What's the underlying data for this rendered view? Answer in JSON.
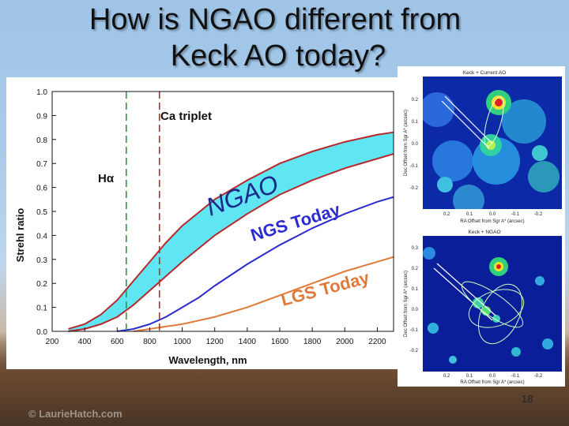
{
  "slide": {
    "title_line1": "How is NGAO different from",
    "title_line2": "Keck AO today?",
    "page_number": "18",
    "watermark": "© LaurieHatch.com"
  },
  "chart_data": {
    "type": "line",
    "ylabel": "Strehl ratio",
    "xlabel": "Wavelength, nm",
    "xlim": [
      200,
      2300
    ],
    "ylim": [
      0.0,
      1.0
    ],
    "xticks": [
      "200",
      "400",
      "600",
      "800",
      "1000",
      "1200",
      "1400",
      "1600",
      "1800",
      "2000",
      "2200"
    ],
    "yticks": [
      "0.0",
      "0.1",
      "0.2",
      "0.3",
      "0.4",
      "0.5",
      "0.6",
      "0.7",
      "0.8",
      "0.9",
      "1.0"
    ],
    "vlines": [
      {
        "label": "Hα",
        "x": 656,
        "color": "#2e9a3e"
      },
      {
        "label": "Ca triplet",
        "x": 860,
        "color": "#b0312b"
      }
    ],
    "band_label": "NGAO",
    "band_color": "#5fe6f2",
    "series": [
      {
        "name": "NGAO",
        "color": "#b7272b",
        "x": [
          300,
          400,
          500,
          600,
          700,
          800,
          900,
          1000,
          1200,
          1400,
          1600,
          1800,
          2000,
          2200,
          2300
        ],
        "y": [
          0.01,
          0.03,
          0.07,
          0.13,
          0.21,
          0.29,
          0.37,
          0.44,
          0.55,
          0.63,
          0.7,
          0.75,
          0.79,
          0.82,
          0.83
        ]
      },
      {
        "name": "",
        "color": "#b7272b",
        "x": [
          300,
          400,
          500,
          600,
          700,
          800,
          900,
          1000,
          1200,
          1400,
          1600,
          1800,
          2000,
          2200,
          2300
        ],
        "y": [
          0.0,
          0.01,
          0.03,
          0.06,
          0.11,
          0.17,
          0.23,
          0.29,
          0.4,
          0.49,
          0.57,
          0.63,
          0.68,
          0.72,
          0.74
        ]
      },
      {
        "name": "NGS Today",
        "color": "#2b2bd1",
        "x": [
          600,
          700,
          800,
          900,
          1000,
          1100,
          1200,
          1400,
          1600,
          1800,
          2000,
          2200,
          2300
        ],
        "y": [
          0.0,
          0.01,
          0.03,
          0.06,
          0.1,
          0.14,
          0.19,
          0.28,
          0.36,
          0.43,
          0.49,
          0.54,
          0.56
        ]
      },
      {
        "name": "LGS Today",
        "color": "#e07a3a",
        "x": [
          700,
          800,
          900,
          1000,
          1200,
          1400,
          1600,
          1800,
          2000,
          2200,
          2300
        ],
        "y": [
          0.0,
          0.01,
          0.02,
          0.03,
          0.06,
          0.1,
          0.15,
          0.2,
          0.25,
          0.29,
          0.31
        ]
      }
    ]
  },
  "images": {
    "top": {
      "title": "Keck + Current AO",
      "xlabel": "RA Offset from Sgr A* (arcsec)",
      "ylabel": "Dec Offset from Sgr A* (arcsec)",
      "xticks": [
        "0.2",
        "0.1",
        "0.0",
        "-0.1",
        "-0.2"
      ],
      "yticks": [
        "0.2",
        "0.1",
        "0.0",
        "-0.1",
        "-0.2"
      ]
    },
    "bottom": {
      "title": "Keck + NGAO",
      "xlabel": "RA Offset from Sgr A* (arcsec)",
      "ylabel": "Dec Offset from Sgr A* (arcsec)",
      "xticks": [
        "0.2",
        "0.1",
        "0.0",
        "-0.1",
        "-0.2"
      ],
      "yticks": [
        "0.3",
        "0.2",
        "0.1",
        "0.0",
        "-0.1",
        "-0.2"
      ]
    }
  }
}
